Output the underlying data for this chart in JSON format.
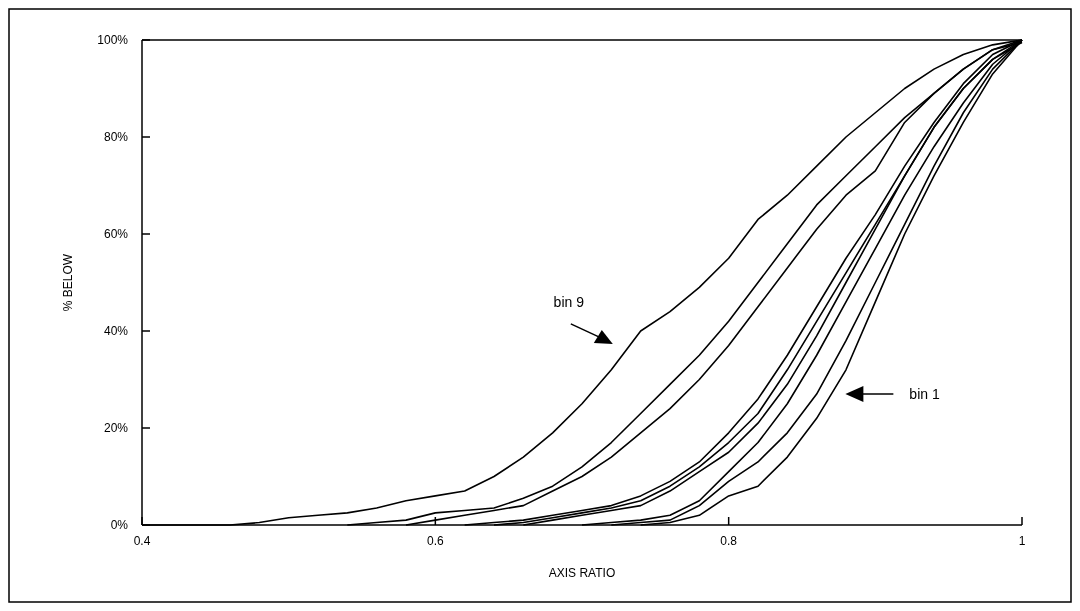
{
  "chart_data": {
    "type": "line",
    "xlabel": "AXIS RATIO",
    "ylabel": "% BELOW",
    "series": [
      {
        "color": "#000000",
        "x": [
          0.74,
          0.76,
          0.78,
          0.8,
          0.82,
          0.84,
          0.86,
          0.88,
          0.9,
          0.92,
          0.94,
          0.96,
          0.98,
          1
        ],
        "values": [
          0,
          0.5,
          2,
          6,
          8,
          14,
          22,
          32,
          46,
          60,
          72,
          83,
          93,
          100
        ]
      },
      {
        "color": "#000000",
        "x": [
          0.72,
          0.74,
          0.76,
          0.78,
          0.8,
          0.82,
          0.84,
          0.86,
          0.88,
          0.9,
          0.92,
          0.94,
          0.96,
          0.98,
          1
        ],
        "values": [
          0,
          0.5,
          1,
          4,
          9,
          13,
          19,
          27,
          38,
          50,
          62,
          74,
          85,
          94,
          100
        ]
      },
      {
        "color": "#000000",
        "x": [
          0.7,
          0.72,
          0.74,
          0.76,
          0.78,
          0.8,
          0.82,
          0.84,
          0.86,
          0.88,
          0.9,
          0.92,
          0.94,
          0.96,
          0.98,
          1
        ],
        "values": [
          0,
          0.5,
          1,
          2,
          5,
          11,
          17,
          25,
          35,
          46,
          57,
          68,
          78,
          87,
          95,
          100
        ]
      },
      {
        "color": "#000000",
        "x": [
          0.66,
          0.68,
          0.7,
          0.72,
          0.74,
          0.76,
          0.78,
          0.8,
          0.82,
          0.84,
          0.86,
          0.88,
          0.9,
          0.92,
          0.94,
          0.96,
          0.98,
          1
        ],
        "values": [
          0,
          1,
          2,
          3,
          4,
          7,
          11,
          15,
          21,
          29,
          39,
          50,
          61,
          72,
          82,
          90,
          96,
          100
        ]
      },
      {
        "color": "#000000",
        "x": [
          0.64,
          0.66,
          0.68,
          0.7,
          0.72,
          0.74,
          0.76,
          0.78,
          0.8,
          0.82,
          0.84,
          0.86,
          0.88,
          0.9,
          0.92,
          0.94,
          0.96,
          0.98,
          1
        ],
        "values": [
          0,
          0.5,
          1.5,
          2.5,
          3.5,
          5,
          8,
          12,
          17,
          23,
          32,
          42,
          52,
          62,
          72,
          82,
          90,
          96,
          99.5
        ]
      },
      {
        "color": "#000000",
        "x": [
          0.62,
          0.64,
          0.66,
          0.68,
          0.7,
          0.72,
          0.74,
          0.76,
          0.78,
          0.8,
          0.82,
          0.84,
          0.86,
          0.88,
          0.9,
          0.92,
          0.94,
          0.96,
          0.98,
          1
        ],
        "values": [
          0,
          0.5,
          1,
          2,
          3,
          4,
          6,
          9,
          13,
          19,
          26,
          35,
          45,
          55,
          64,
          74,
          83,
          91,
          97,
          100
        ]
      },
      {
        "color": "#000000",
        "x": [
          0.58,
          0.6,
          0.62,
          0.64,
          0.66,
          0.68,
          0.7,
          0.72,
          0.74,
          0.76,
          0.78,
          0.8,
          0.82,
          0.84,
          0.86,
          0.88,
          0.9,
          0.92,
          0.94,
          0.96,
          0.98,
          1
        ],
        "values": [
          0,
          1,
          2,
          3,
          4,
          7,
          10,
          14,
          19,
          24,
          30,
          37,
          45,
          53,
          61,
          68,
          73,
          83,
          89,
          94,
          98,
          99.5
        ]
      },
      {
        "color": "#000000",
        "x": [
          0.54,
          0.56,
          0.58,
          0.6,
          0.62,
          0.64,
          0.66,
          0.68,
          0.7,
          0.72,
          0.74,
          0.76,
          0.78,
          0.8,
          0.82,
          0.84,
          0.86,
          0.88,
          0.9,
          0.92,
          0.94,
          0.96,
          0.98,
          1
        ],
        "values": [
          0,
          0.5,
          1,
          2.5,
          3,
          3.5,
          5.5,
          8,
          12,
          17,
          23,
          29,
          35,
          42,
          50,
          58,
          66,
          72,
          78,
          84,
          89,
          94,
          98,
          100
        ]
      },
      {
        "color": "#000000",
        "x": [
          0.4,
          0.42,
          0.44,
          0.46,
          0.48,
          0.5,
          0.52,
          0.54,
          0.56,
          0.58,
          0.6,
          0.62,
          0.64,
          0.66,
          0.68,
          0.7,
          0.72,
          0.74,
          0.76,
          0.78,
          0.8,
          0.82,
          0.84,
          0.86,
          0.88,
          0.9,
          0.92,
          0.94,
          0.96,
          0.98,
          1
        ],
        "values": [
          0,
          0,
          0,
          0,
          0.5,
          1.5,
          2,
          2.5,
          3.5,
          5,
          6,
          7,
          10,
          14,
          19,
          25,
          32,
          40,
          44,
          49,
          55,
          63,
          68,
          74,
          80,
          85,
          90,
          94,
          97,
          99,
          100
        ]
      }
    ],
    "xlim": [
      0.4,
      1
    ],
    "xticks": [
      0.4,
      0.6,
      0.8,
      1
    ],
    "ylim": [
      0,
      100
    ],
    "yticks": [
      {
        "value": 0,
        "label": "0%"
      },
      {
        "value": 20,
        "label": "20%"
      },
      {
        "value": 40,
        "label": "40%"
      },
      {
        "value": 60,
        "label": "60%"
      },
      {
        "value": 80,
        "label": "80%"
      },
      {
        "value": 100,
        "label": "100%"
      }
    ],
    "annotations": [
      "bin 9",
      "bin 1"
    ],
    "grid": false,
    "marker": "none",
    "line_style": "solid"
  }
}
